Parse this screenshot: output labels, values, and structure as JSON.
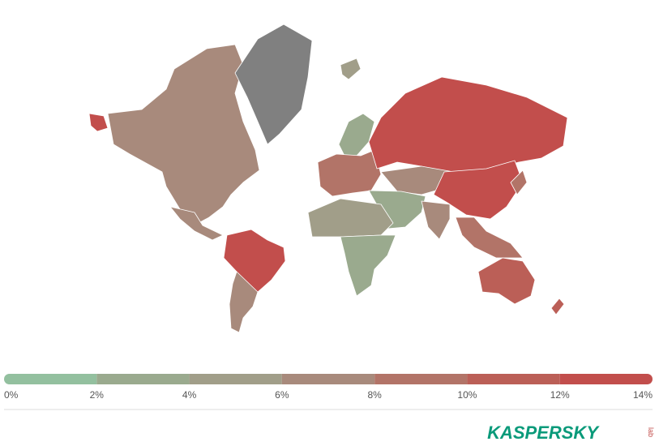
{
  "legend": {
    "range": [
      0,
      14
    ],
    "ticks": [
      {
        "value": 0,
        "label": "0%"
      },
      {
        "value": 2,
        "label": "2%"
      },
      {
        "value": 4,
        "label": "4%"
      },
      {
        "value": 6,
        "label": "6%"
      },
      {
        "value": 8,
        "label": "8%"
      },
      {
        "value": 10,
        "label": "10%"
      },
      {
        "value": 12,
        "label": "12%"
      },
      {
        "value": 14,
        "label": "14%"
      }
    ],
    "colors": [
      "#93c09f",
      "#9aaa8e",
      "#a19e89",
      "#a88a7c",
      "#b27468",
      "#bb5f57",
      "#c24e4c"
    ]
  },
  "logo": {
    "name": "KASPERSKY",
    "sub": "lab"
  }
}
